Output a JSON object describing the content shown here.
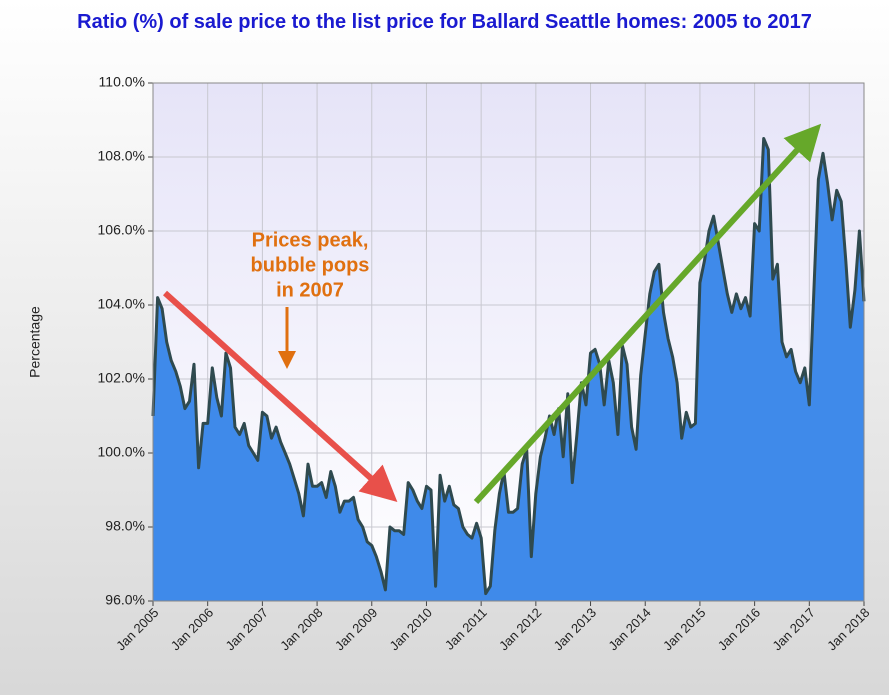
{
  "chart_data": {
    "type": "area",
    "title": "Ratio (%) of sale price to the list price for Ballard Seattle homes: 2005 to 2017",
    "ylabel": "Percentage",
    "annotation": [
      "Prices peak,",
      "bubble pops",
      "in 2007"
    ],
    "x": [
      "2005-01",
      "2005-02",
      "2005-03",
      "2005-04",
      "2005-05",
      "2005-06",
      "2005-07",
      "2005-08",
      "2005-09",
      "2005-10",
      "2005-11",
      "2005-12",
      "2006-01",
      "2006-02",
      "2006-03",
      "2006-04",
      "2006-05",
      "2006-06",
      "2006-07",
      "2006-08",
      "2006-09",
      "2006-10",
      "2006-11",
      "2006-12",
      "2007-01",
      "2007-02",
      "2007-03",
      "2007-04",
      "2007-05",
      "2007-06",
      "2007-07",
      "2007-08",
      "2007-09",
      "2007-10",
      "2007-11",
      "2007-12",
      "2008-01",
      "2008-02",
      "2008-03",
      "2008-04",
      "2008-05",
      "2008-06",
      "2008-07",
      "2008-08",
      "2008-09",
      "2008-10",
      "2008-11",
      "2008-12",
      "2009-01",
      "2009-02",
      "2009-03",
      "2009-04",
      "2009-05",
      "2009-06",
      "2009-07",
      "2009-08",
      "2009-09",
      "2009-10",
      "2009-11",
      "2009-12",
      "2010-01",
      "2010-02",
      "2010-03",
      "2010-04",
      "2010-05",
      "2010-06",
      "2010-07",
      "2010-08",
      "2010-09",
      "2010-10",
      "2010-11",
      "2010-12",
      "2011-01",
      "2011-02",
      "2011-03",
      "2011-04",
      "2011-05",
      "2011-06",
      "2011-07",
      "2011-08",
      "2011-09",
      "2011-10",
      "2011-11",
      "2011-12",
      "2012-01",
      "2012-02",
      "2012-03",
      "2012-04",
      "2012-05",
      "2012-06",
      "2012-07",
      "2012-08",
      "2012-09",
      "2012-10",
      "2012-11",
      "2012-12",
      "2013-01",
      "2013-02",
      "2013-03",
      "2013-04",
      "2013-05",
      "2013-06",
      "2013-07",
      "2013-08",
      "2013-09",
      "2013-10",
      "2013-11",
      "2013-12",
      "2014-01",
      "2014-02",
      "2014-03",
      "2014-04",
      "2014-05",
      "2014-06",
      "2014-07",
      "2014-08",
      "2014-09",
      "2014-10",
      "2014-11",
      "2014-12",
      "2015-01",
      "2015-02",
      "2015-03",
      "2015-04",
      "2015-05",
      "2015-06",
      "2015-07",
      "2015-08",
      "2015-09",
      "2015-10",
      "2015-11",
      "2015-12",
      "2016-01",
      "2016-02",
      "2016-03",
      "2016-04",
      "2016-05",
      "2016-06",
      "2016-07",
      "2016-08",
      "2016-09",
      "2016-10",
      "2016-11",
      "2016-12",
      "2017-01",
      "2017-02",
      "2017-03",
      "2017-04",
      "2017-05",
      "2017-06",
      "2017-07",
      "2017-08",
      "2017-09",
      "2017-10",
      "2017-11",
      "2017-12",
      "2018-01"
    ],
    "values": [
      101.0,
      104.2,
      103.9,
      103.0,
      102.5,
      102.2,
      101.8,
      101.2,
      101.4,
      102.4,
      99.6,
      100.8,
      100.8,
      102.3,
      101.5,
      101.0,
      102.7,
      102.3,
      100.7,
      100.5,
      100.8,
      100.2,
      100.0,
      99.8,
      101.1,
      101.0,
      100.4,
      100.7,
      100.3,
      100.0,
      99.7,
      99.3,
      98.9,
      98.3,
      99.7,
      99.1,
      99.1,
      99.2,
      98.8,
      99.5,
      99.1,
      98.4,
      98.7,
      98.7,
      98.8,
      98.2,
      98.0,
      97.6,
      97.5,
      97.2,
      96.8,
      96.3,
      98.0,
      97.9,
      97.9,
      97.8,
      99.2,
      99.0,
      98.7,
      98.5,
      99.1,
      99.0,
      96.4,
      99.4,
      98.7,
      99.1,
      98.6,
      98.5,
      98.0,
      97.8,
      97.7,
      98.1,
      97.7,
      96.2,
      96.4,
      97.9,
      98.9,
      99.5,
      98.4,
      98.4,
      98.5,
      99.7,
      100.1,
      97.2,
      98.9,
      99.9,
      100.4,
      101.0,
      100.5,
      101.2,
      99.9,
      101.6,
      99.2,
      100.5,
      101.9,
      101.3,
      102.7,
      102.8,
      102.4,
      101.3,
      102.5,
      101.9,
      100.5,
      102.9,
      102.4,
      100.7,
      100.1,
      102.1,
      103.2,
      104.3,
      104.9,
      105.1,
      103.8,
      103.1,
      102.6,
      101.9,
      100.4,
      101.1,
      100.7,
      100.8,
      104.6,
      105.2,
      106.0,
      106.4,
      105.7,
      105.0,
      104.3,
      103.8,
      104.3,
      103.9,
      104.2,
      103.7,
      106.2,
      106.0,
      108.5,
      108.2,
      104.7,
      105.1,
      103.0,
      102.6,
      102.8,
      102.2,
      101.9,
      102.3,
      101.3,
      104.4,
      107.4,
      108.1,
      107.3,
      106.3,
      107.1,
      106.8,
      105.2,
      103.4,
      104.4,
      106.0,
      104.1
    ],
    "color": "#3f8aea",
    "line_color": "#2f4a4f",
    "ylim": [
      96,
      110
    ],
    "yticks": [
      {
        "value": 96,
        "label": "96.0%"
      },
      {
        "value": 98,
        "label": "98.0%"
      },
      {
        "value": 100,
        "label": "100.0%"
      },
      {
        "value": 102,
        "label": "102.0%"
      },
      {
        "value": 104,
        "label": "104.0%"
      },
      {
        "value": 106,
        "label": "106.0%"
      },
      {
        "value": 108,
        "label": "108.0%"
      },
      {
        "value": 110,
        "label": "110.0%"
      }
    ],
    "xticks": [
      {
        "value": "2005-01",
        "label": "Jan 2005"
      },
      {
        "value": "2006-01",
        "label": "Jan 2006"
      },
      {
        "value": "2007-01",
        "label": "Jan 2007"
      },
      {
        "value": "2008-01",
        "label": "Jan 2008"
      },
      {
        "value": "2009-01",
        "label": "Jan 2009"
      },
      {
        "value": "2010-01",
        "label": "Jan 2010"
      },
      {
        "value": "2011-01",
        "label": "Jan 2011"
      },
      {
        "value": "2012-01",
        "label": "Jan 2012"
      },
      {
        "value": "2013-01",
        "label": "Jan 2013"
      },
      {
        "value": "2014-01",
        "label": "Jan 2014"
      },
      {
        "value": "2015-01",
        "label": "Jan 2015"
      },
      {
        "value": "2016-01",
        "label": "Jan 2016"
      },
      {
        "value": "2017-01",
        "label": "Jan 2017"
      },
      {
        "value": "2018-01",
        "label": "Jan 2018"
      }
    ],
    "grid": true
  }
}
